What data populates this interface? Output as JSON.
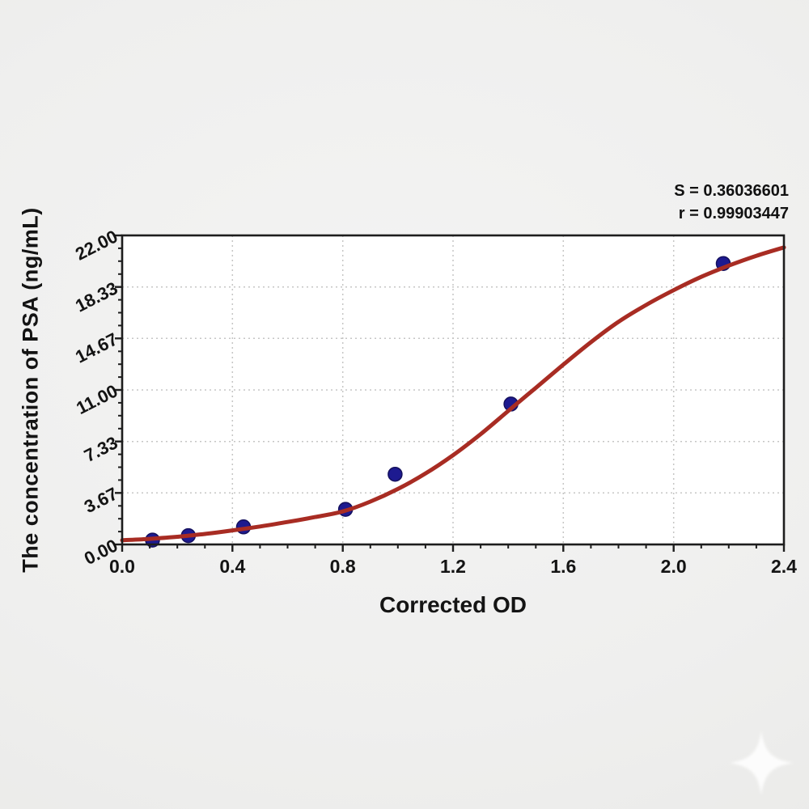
{
  "stats": {
    "s": "S = 0.36036601",
    "r": "r = 0.99903447"
  },
  "chart_data": {
    "type": "scatter",
    "title": "",
    "xlabel": "Corrected OD",
    "ylabel": "The concentration of PSA (ng/mL)",
    "xlim": [
      0,
      2.4
    ],
    "ylim": [
      0,
      22
    ],
    "grid": {
      "style": "dashed",
      "color": "#c6c6c5",
      "on": true,
      "at_major_ticks_only": true
    },
    "legend": null,
    "x_ticks": [
      {
        "v": 0.0,
        "label": "0.0"
      },
      {
        "v": 0.4,
        "label": "0.4"
      },
      {
        "v": 0.8,
        "label": "0.8"
      },
      {
        "v": 1.2,
        "label": "1.2"
      },
      {
        "v": 1.6,
        "label": "1.6"
      },
      {
        "v": 2.0,
        "label": "2.0"
      },
      {
        "v": 2.4,
        "label": "2.4"
      }
    ],
    "y_ticks": [
      {
        "v": 0.0,
        "label": "0.00"
      },
      {
        "v": 3.667,
        "label": "3.67"
      },
      {
        "v": 7.333,
        "label": "7.33"
      },
      {
        "v": 11.0,
        "label": "11.00"
      },
      {
        "v": 14.667,
        "label": "14.67"
      },
      {
        "v": 18.333,
        "label": "18.33"
      },
      {
        "v": 22.0,
        "label": "22.00"
      }
    ],
    "x_minor_step": 0.1,
    "y_minor_divisions_per_major": 4,
    "series": [
      {
        "name": "standard-points",
        "type": "scatter",
        "color": "#1d1a90",
        "edge_color": "#14105e",
        "marker_radius": 8.5,
        "points": [
          [
            0.11,
            0.312
          ],
          [
            0.24,
            0.625
          ],
          [
            0.44,
            1.25
          ],
          [
            0.81,
            2.5
          ],
          [
            0.99,
            5.0
          ],
          [
            1.41,
            10.0
          ],
          [
            2.18,
            20.0
          ]
        ]
      },
      {
        "name": "fitted-curve",
        "type": "line",
        "color": "#a82c23",
        "width": 5,
        "x": [
          0.0,
          0.1,
          0.2,
          0.3,
          0.4,
          0.5,
          0.6,
          0.7,
          0.8,
          0.9,
          1.0,
          1.1,
          1.2,
          1.3,
          1.4,
          1.5,
          1.6,
          1.7,
          1.8,
          1.9,
          2.0,
          2.1,
          2.2,
          2.3,
          2.4
        ],
        "y": [
          0.3,
          0.4,
          0.55,
          0.75,
          1.0,
          1.28,
          1.6,
          1.95,
          2.35,
          3.05,
          3.95,
          5.05,
          6.35,
          7.85,
          9.5,
          11.15,
          12.8,
          14.4,
          15.85,
          17.05,
          18.1,
          19.05,
          19.85,
          20.55,
          21.15
        ]
      }
    ],
    "annotations": {
      "S": "0.36036601",
      "r": "0.99903447"
    }
  },
  "colors": {
    "plot_background": "#ffffff",
    "page_background": "#efefee",
    "axis": "#1d1d1d",
    "grid": "#c6c6c5",
    "text": "#141414",
    "curve": "#a82c23",
    "marker": "#1d1a90"
  },
  "watermark": {
    "icon": "sparkle",
    "color": "#ffffff"
  }
}
